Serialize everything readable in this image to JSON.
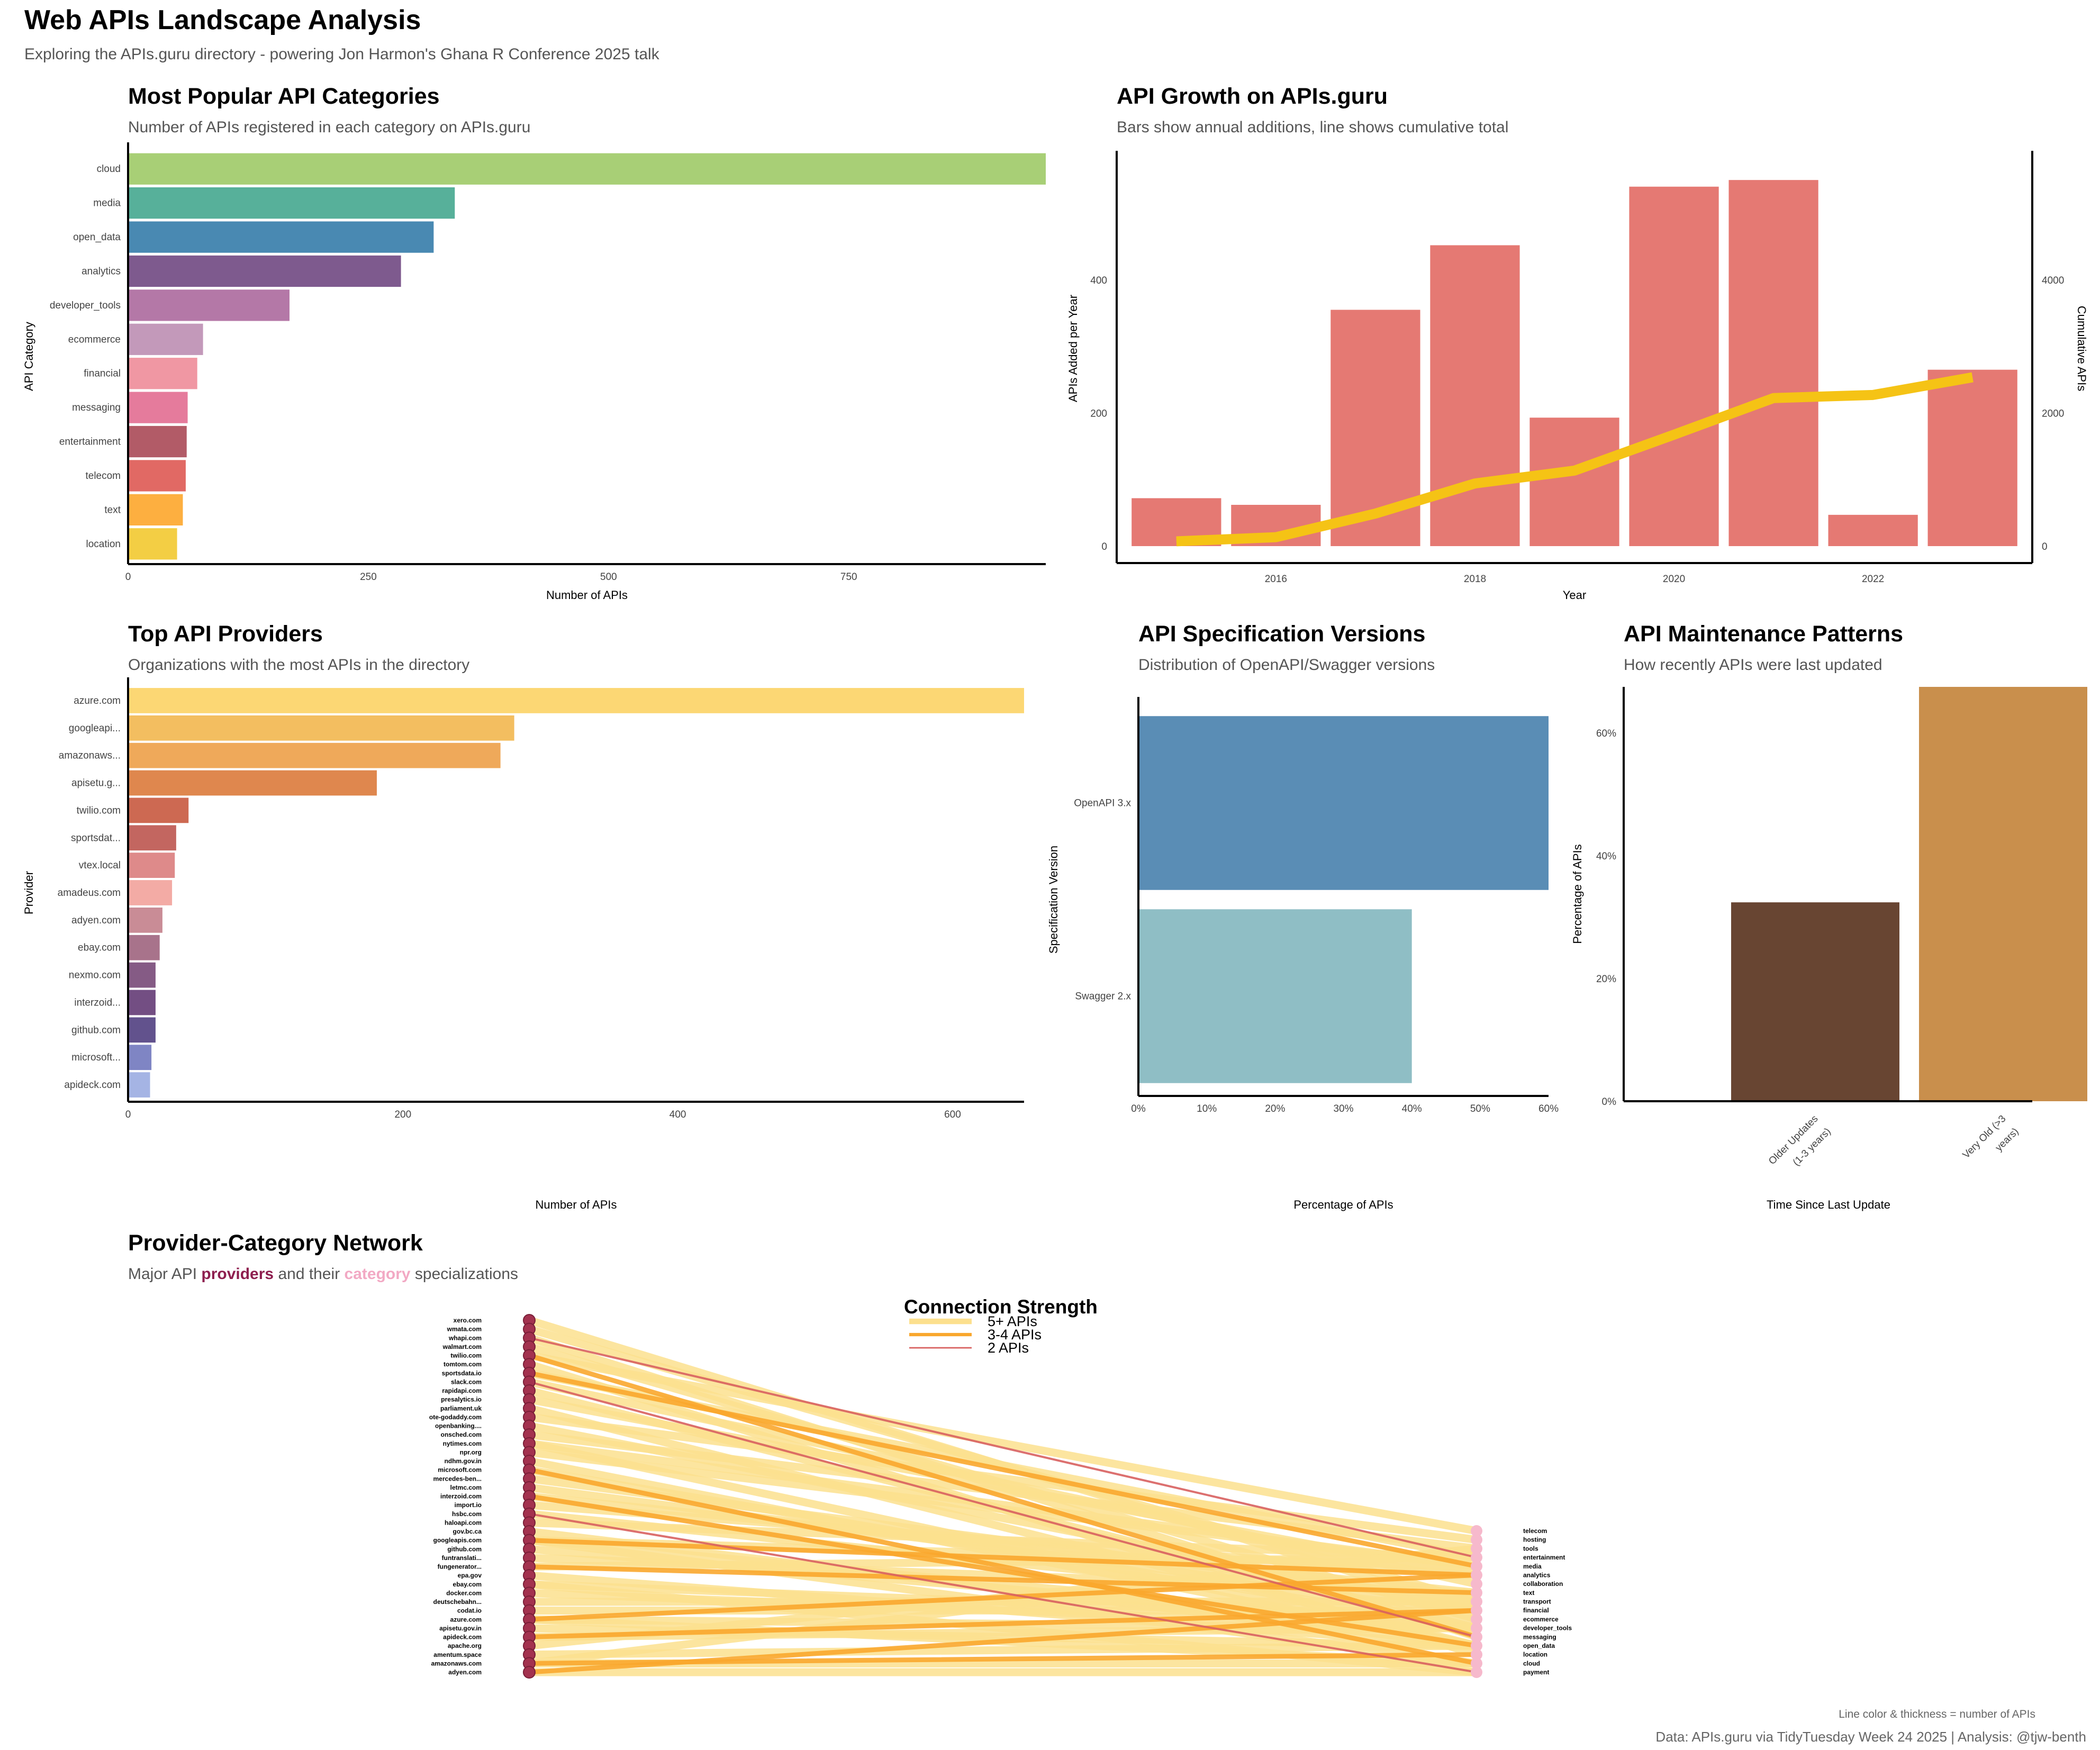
{
  "header": {
    "title": "Web APIs Landscape Analysis",
    "subtitle": "Exploring the APIs.guru directory - powering Jon Harmon's Ghana R Conference 2025 talk"
  },
  "footer": {
    "network_caption": "Line color & thickness = number of APIs",
    "credit": "Data: APIs.guru via TidyTuesday Week 24 2025 | Analysis: @tjw-benth"
  },
  "chart_data": [
    {
      "id": "categories",
      "type": "bar",
      "orientation": "horizontal",
      "title": "Most Popular API Categories",
      "subtitle": "Number of APIs registered in each category on APIs.guru",
      "xlabel": "Number of APIs",
      "ylabel": "API Category",
      "xlim": [
        0,
        955
      ],
      "xticks": [
        0,
        250,
        500,
        750
      ],
      "categories": [
        "cloud",
        "media",
        "open_data",
        "analytics",
        "developer_tools",
        "ecommerce",
        "financial",
        "messaging",
        "entertainment",
        "telecom",
        "text",
        "location"
      ],
      "values": [
        955,
        340,
        318,
        284,
        168,
        78,
        72,
        62,
        61,
        60,
        57,
        51
      ],
      "colors": [
        "#A8CF76",
        "#57B09A",
        "#4989B2",
        "#7E5A8E",
        "#B478A7",
        "#C399BA",
        "#F097A3",
        "#E57B9C",
        "#B25B67",
        "#E16964",
        "#FDAF40",
        "#F3CE44"
      ]
    },
    {
      "id": "growth",
      "type": "bar+line",
      "title": "API Growth on APIs.guru",
      "subtitle": "Bars show annual additions, line shows cumulative total",
      "xlabel": "Year",
      "ylabel": "APIs Added per Year",
      "y2label": "Cumulative APIs",
      "xticks": [
        2016,
        2018,
        2020,
        2022
      ],
      "yticks": [
        0,
        200,
        400
      ],
      "y2ticks": [
        0,
        2000,
        4000
      ],
      "years": [
        2015,
        2016,
        2017,
        2018,
        2019,
        2020,
        2021,
        2022,
        2023
      ],
      "added": [
        72,
        62,
        355,
        452,
        193,
        540,
        550,
        47,
        265
      ],
      "cumulative": [
        72,
        134,
        489,
        941,
        1134,
        1674,
        2224,
        2271,
        2536
      ],
      "bar_color": "#E57973",
      "line_color": "#F5C315"
    },
    {
      "id": "providers",
      "type": "bar",
      "orientation": "horizontal",
      "title": "Top API Providers",
      "subtitle": "Organizations with the most APIs in the directory",
      "xlabel": "Number of APIs",
      "ylabel": "Provider",
      "xlim": [
        0,
        652
      ],
      "xticks": [
        0,
        200,
        400,
        600
      ],
      "categories": [
        "azure.com",
        "googleapi...",
        "amazonaws...",
        "apisetu.g...",
        "twilio.com",
        "sportsdat...",
        "vtex.local",
        "amadeus.com",
        "adyen.com",
        "ebay.com",
        "nexmo.com",
        "interzoid...",
        "github.com",
        "microsoft...",
        "apideck.com"
      ],
      "values": [
        652,
        281,
        271,
        181,
        44,
        35,
        34,
        32,
        25,
        23,
        20,
        20,
        20,
        17,
        16
      ],
      "colors": [
        "#FCD774",
        "#F3BE60",
        "#EFA95A",
        "#DF874E",
        "#CD6952",
        "#C36660",
        "#DE8A8A",
        "#F3ABA5",
        "#C98C96",
        "#A8738B",
        "#855B85",
        "#734E83",
        "#62528D",
        "#7F85C4",
        "#A5B4E4"
      ]
    },
    {
      "id": "versions",
      "type": "bar",
      "orientation": "horizontal",
      "title": "API Specification Versions",
      "subtitle": "Distribution of OpenAPI/Swagger versions",
      "xlabel": "Percentage of APIs",
      "ylabel": "Specification Version",
      "xlim": [
        0,
        60
      ],
      "xticks": [
        0,
        10,
        20,
        30,
        40,
        50,
        60
      ],
      "tick_labels": [
        "0%",
        "10%",
        "20%",
        "30%",
        "40%",
        "50%",
        "60%"
      ],
      "categories": [
        "OpenAPI 3.x",
        "Swagger 2.x"
      ],
      "values": [
        60,
        40
      ],
      "colors": [
        "#5A8DB5",
        "#8FBEC5"
      ]
    },
    {
      "id": "maintenance",
      "type": "bar",
      "title": "API Maintenance Patterns",
      "subtitle": "How recently APIs were last updated",
      "xlabel": "Time Since Last Update",
      "ylabel": "Percentage of APIs",
      "ylim": [
        0,
        67.5
      ],
      "yticks": [
        0,
        20,
        40,
        60
      ],
      "tick_labels": [
        "0%",
        "20%",
        "40%",
        "60%"
      ],
      "categories": [
        [
          "Older Updates",
          "(1-3 years)"
        ],
        [
          "Very Old (>3",
          "years)"
        ]
      ],
      "values": [
        32.4,
        67.6
      ],
      "colors": [
        "#684532",
        "#C98F4C"
      ]
    },
    {
      "id": "network",
      "type": "network",
      "title": "Provider-Category Network",
      "subtitle_parts": [
        "Major API ",
        "providers",
        " and their ",
        "category",
        " specializations"
      ],
      "legend_title": "Connection Strength",
      "legend": [
        {
          "label": "5+ APIs",
          "color": "#FCE08E"
        },
        {
          "label": "3-4 APIs",
          "color": "#F9A72D"
        },
        {
          "label": "2 APIs",
          "color": "#D8605F"
        }
      ],
      "providers": [
        "xero.com",
        "wmata.com",
        "whapi.com",
        "walmart.com",
        "twilio.com",
        "tomtom.com",
        "sportsdata.io",
        "slack.com",
        "rapidapi.com",
        "presalytics.io",
        "parliament.uk",
        "ote-godaddy.com",
        "openbanking....",
        "onsched.com",
        "nytimes.com",
        "npr.org",
        "ndhm.gov.in",
        "microsoft.com",
        "mercedes-ben...",
        "letmc.com",
        "interzoid.com",
        "import.io",
        "hsbc.com",
        "haloapi.com",
        "gov.bc.ca",
        "googleapis.com",
        "github.com",
        "funtranslati...",
        "fungenerator...",
        "epa.gov",
        "ebay.com",
        "docker.com",
        "deutschebahn...",
        "codat.io",
        "azure.com",
        "apisetu.gov.in",
        "apideck.com",
        "apache.org",
        "amentum.space",
        "amazonaws.com",
        "adyen.com"
      ],
      "categories": [
        "telecom",
        "hosting",
        "tools",
        "entertainment",
        "media",
        "analytics",
        "collaboration",
        "text",
        "transport",
        "financial",
        "ecommerce",
        "developer_tools",
        "messaging",
        "open_data",
        "location",
        "cloud",
        "payment"
      ],
      "edges": [
        [
          0,
          9,
          0
        ],
        [
          1,
          8,
          0
        ],
        [
          2,
          12,
          0
        ],
        [
          3,
          10,
          0
        ],
        [
          4,
          0,
          0
        ],
        [
          4,
          12,
          1
        ],
        [
          5,
          14,
          0
        ],
        [
          6,
          3,
          0
        ],
        [
          6,
          4,
          1
        ],
        [
          7,
          6,
          0
        ],
        [
          7,
          12,
          2
        ],
        [
          8,
          11,
          0
        ],
        [
          9,
          5,
          0
        ],
        [
          10,
          13,
          0
        ],
        [
          11,
          1,
          0
        ],
        [
          12,
          9,
          0
        ],
        [
          13,
          2,
          0
        ],
        [
          14,
          4,
          0
        ],
        [
          15,
          4,
          0
        ],
        [
          16,
          13,
          0
        ],
        [
          17,
          15,
          1
        ],
        [
          17,
          11,
          0
        ],
        [
          18,
          8,
          0
        ],
        [
          19,
          9,
          0
        ],
        [
          20,
          7,
          0
        ],
        [
          20,
          13,
          1
        ],
        [
          21,
          5,
          0
        ],
        [
          22,
          9,
          0
        ],
        [
          23,
          3,
          0
        ],
        [
          24,
          13,
          0
        ],
        [
          25,
          15,
          0
        ],
        [
          25,
          5,
          1
        ],
        [
          25,
          4,
          0
        ],
        [
          25,
          11,
          0
        ],
        [
          26,
          11,
          0
        ],
        [
          27,
          7,
          0
        ],
        [
          28,
          3,
          0
        ],
        [
          28,
          7,
          1
        ],
        [
          29,
          13,
          0
        ],
        [
          30,
          10,
          0
        ],
        [
          31,
          11,
          0
        ],
        [
          32,
          8,
          0
        ],
        [
          33,
          9,
          0
        ],
        [
          34,
          15,
          0
        ],
        [
          34,
          5,
          1
        ],
        [
          34,
          11,
          0
        ],
        [
          35,
          13,
          0
        ],
        [
          36,
          11,
          0
        ],
        [
          36,
          9,
          1
        ],
        [
          37,
          2,
          0
        ],
        [
          38,
          13,
          0
        ],
        [
          39,
          15,
          0
        ],
        [
          39,
          14,
          1
        ],
        [
          39,
          2,
          0
        ],
        [
          40,
          16,
          0
        ],
        [
          40,
          9,
          1
        ],
        [
          2,
          3,
          2
        ],
        [
          14,
          13,
          0
        ],
        [
          30,
          16,
          0
        ],
        [
          22,
          16,
          2
        ]
      ]
    }
  ]
}
